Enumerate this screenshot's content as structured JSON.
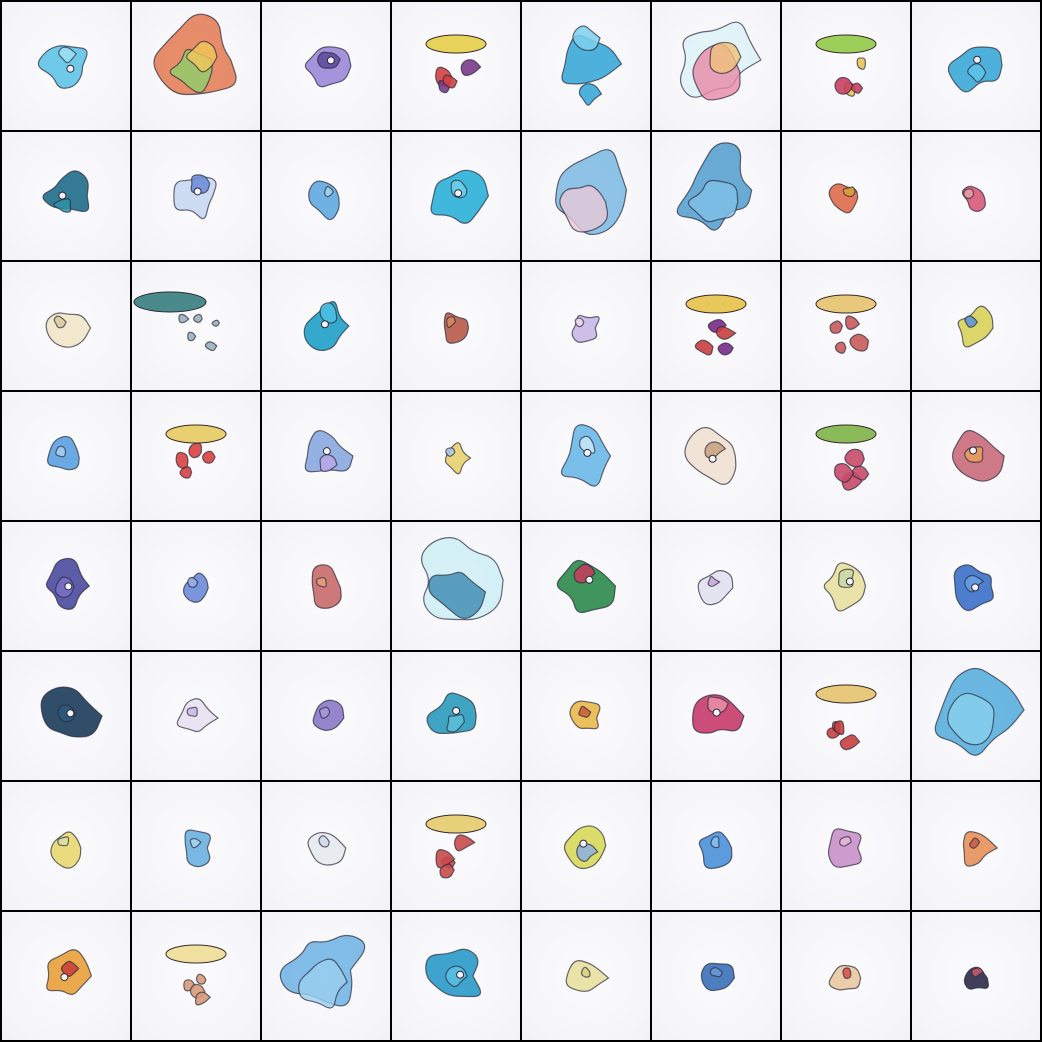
{
  "grid": {
    "rows": 8,
    "cols": 8,
    "tile_background": "#f6f6fa",
    "gutter_color": "#000000",
    "tiles": [
      {
        "palette": [
          "#5fc3e6",
          "#9fe0f2"
        ],
        "shape": "figure"
      },
      {
        "palette": [
          "#e0683a",
          "#8fcf6a",
          "#f2c65a"
        ],
        "shape": "large-colorful"
      },
      {
        "palette": [
          "#9b88d8",
          "#5a4a9a"
        ],
        "shape": "figure"
      },
      {
        "palette": [
          "#e8d35a",
          "#d24040",
          "#7a3a8a"
        ],
        "shape": "cap-with-drops"
      },
      {
        "palette": [
          "#3aa8d8",
          "#7fd0ee"
        ],
        "shape": "tall-figure"
      },
      {
        "palette": [
          "#d9f2f7",
          "#e88aa6",
          "#f0c07a"
        ],
        "shape": "large-pale"
      },
      {
        "palette": [
          "#9ccf5a",
          "#e8c35a",
          "#c84060"
        ],
        "shape": "cap-with-drops"
      },
      {
        "palette": [
          "#3aa8d8",
          "#5fc3e6"
        ],
        "shape": "figure"
      },
      {
        "palette": [
          "#1e6c8a",
          "#2f8fa8"
        ],
        "shape": "figure"
      },
      {
        "palette": [
          "#c8d8f2",
          "#6a8ad8"
        ],
        "shape": "figure"
      },
      {
        "palette": [
          "#5fa8e0",
          "#a8d4f0"
        ],
        "shape": "small"
      },
      {
        "palette": [
          "#2ab0d8",
          "#6fd0e8"
        ],
        "shape": "figure"
      },
      {
        "palette": [
          "#6ab0e0",
          "#e8c8d8"
        ],
        "shape": "large-blue"
      },
      {
        "palette": [
          "#3a90c8",
          "#7fc0e8"
        ],
        "shape": "large-blue"
      },
      {
        "palette": [
          "#e06a4a",
          "#d8a03a"
        ],
        "shape": "small"
      },
      {
        "palette": [
          "#d85a7a",
          "#e8a0a0"
        ],
        "shape": "small"
      },
      {
        "palette": [
          "#f0e6c8",
          "#d8c8a0"
        ],
        "shape": "small"
      },
      {
        "palette": [
          "#4a8a8a",
          "#9ab0c0"
        ],
        "shape": "wide-bar"
      },
      {
        "palette": [
          "#1ea0c8",
          "#4ac0e0"
        ],
        "shape": "figure"
      },
      {
        "palette": [
          "#b85a4a",
          "#d88a5a"
        ],
        "shape": "small"
      },
      {
        "palette": [
          "#c8b8e8",
          "#f0d8e8"
        ],
        "shape": "small"
      },
      {
        "palette": [
          "#e8c85a",
          "#c84040",
          "#7a2a8a"
        ],
        "shape": "cap-with-drops"
      },
      {
        "palette": [
          "#e8c87a",
          "#c85a5a"
        ],
        "shape": "cap-with-drops"
      },
      {
        "palette": [
          "#d8d05a",
          "#5a90d8"
        ],
        "shape": "small"
      },
      {
        "palette": [
          "#5aa0e0",
          "#a8d0f0"
        ],
        "shape": "small"
      },
      {
        "palette": [
          "#e8d070",
          "#d84040"
        ],
        "shape": "cap-with-drops"
      },
      {
        "palette": [
          "#8aa8e0",
          "#b8a8e8"
        ],
        "shape": "figure"
      },
      {
        "palette": [
          "#e8d070",
          "#a8c8e8"
        ],
        "shape": "small"
      },
      {
        "palette": [
          "#6ab8e8",
          "#c8e8f8"
        ],
        "shape": "figure"
      },
      {
        "palette": [
          "#f0e0d0",
          "#c8a080"
        ],
        "shape": "figure"
      },
      {
        "palette": [
          "#8aba5a",
          "#c84a6a"
        ],
        "shape": "cap-with-drops"
      },
      {
        "palette": [
          "#c86a7a",
          "#e8a05a"
        ],
        "shape": "figure"
      },
      {
        "palette": [
          "#4a4aa0",
          "#7a70c8"
        ],
        "shape": "figure"
      },
      {
        "palette": [
          "#6a8ad8",
          "#9ab0e8"
        ],
        "shape": "small"
      },
      {
        "palette": [
          "#c86a6a",
          "#e8a07a"
        ],
        "shape": "small"
      },
      {
        "palette": [
          "#c8eef6",
          "#3a8ab0"
        ],
        "shape": "large-pale"
      },
      {
        "palette": [
          "#2a8a4a",
          "#c83a5a"
        ],
        "shape": "figure"
      },
      {
        "palette": [
          "#e0e0f0",
          "#c8a8d8"
        ],
        "shape": "small"
      },
      {
        "palette": [
          "#e8e0a0",
          "#c8d8a8"
        ],
        "shape": "figure"
      },
      {
        "palette": [
          "#3a70c8",
          "#6aa0e0"
        ],
        "shape": "figure"
      },
      {
        "palette": [
          "#1a3a5a",
          "#2a5a7a"
        ],
        "shape": "figure"
      },
      {
        "palette": [
          "#e8e0f0",
          "#c8b8e8"
        ],
        "shape": "small"
      },
      {
        "palette": [
          "#8a78c8",
          "#a89ad8"
        ],
        "shape": "small"
      },
      {
        "palette": [
          "#2a9aba",
          "#5ac0d8"
        ],
        "shape": "figure"
      },
      {
        "palette": [
          "#e8b84a",
          "#c85a3a"
        ],
        "shape": "small"
      },
      {
        "palette": [
          "#c83a6a",
          "#e890a8"
        ],
        "shape": "figure"
      },
      {
        "palette": [
          "#e8c87a",
          "#c84040"
        ],
        "shape": "cap-with-drops"
      },
      {
        "palette": [
          "#3aa0d8",
          "#8ad0ee"
        ],
        "shape": "large-blue"
      },
      {
        "palette": [
          "#e8d870",
          "#d8e0a8"
        ],
        "shape": "small"
      },
      {
        "palette": [
          "#6ab0e0",
          "#a8d4f0"
        ],
        "shape": "small"
      },
      {
        "palette": [
          "#e8e8f0",
          "#d0d8e8"
        ],
        "shape": "small"
      },
      {
        "palette": [
          "#e8d07a",
          "#c84a4a"
        ],
        "shape": "cap-with-drops"
      },
      {
        "palette": [
          "#d8d85a",
          "#8ab0e0"
        ],
        "shape": "figure"
      },
      {
        "palette": [
          "#4a90d8",
          "#8ac0ee"
        ],
        "shape": "small"
      },
      {
        "palette": [
          "#c890c8",
          "#e8b8d8"
        ],
        "shape": "small"
      },
      {
        "palette": [
          "#e8905a",
          "#c85a4a"
        ],
        "shape": "small"
      },
      {
        "palette": [
          "#e8a03a",
          "#c83a3a"
        ],
        "shape": "figure"
      },
      {
        "palette": [
          "#f0e0a0",
          "#d89a7a"
        ],
        "shape": "cap-with-drops"
      },
      {
        "palette": [
          "#5aa8e0",
          "#9ad0f0"
        ],
        "shape": "large-blue"
      },
      {
        "palette": [
          "#2a9ac8",
          "#5ac0e0"
        ],
        "shape": "figure"
      },
      {
        "palette": [
          "#e8e0a0",
          "#d8d080"
        ],
        "shape": "small"
      },
      {
        "palette": [
          "#3a70b8",
          "#6a9ad8"
        ],
        "shape": "small"
      },
      {
        "palette": [
          "#e8c8a0",
          "#d84a4a"
        ],
        "shape": "small"
      },
      {
        "palette": [
          "#2a2a4a",
          "#c85a6a"
        ],
        "shape": "small"
      }
    ]
  }
}
